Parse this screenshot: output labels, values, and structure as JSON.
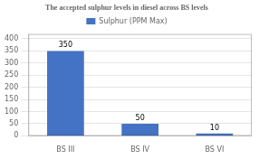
{
  "chart_data": {
    "type": "bar",
    "title": "The accepted sulphur levels in diesel across BS levels",
    "categories": [
      "BS III",
      "BS IV",
      "BS VI"
    ],
    "series": [
      {
        "name": "Sulphur (PPM Max)",
        "color": "#4472c4",
        "values": [
          350,
          50,
          10
        ]
      }
    ],
    "ylim": [
      0,
      420
    ],
    "yticks": [
      0,
      50,
      100,
      150,
      200,
      250,
      300,
      350,
      400
    ],
    "grid": true,
    "legend": "top",
    "data_labels": true
  }
}
